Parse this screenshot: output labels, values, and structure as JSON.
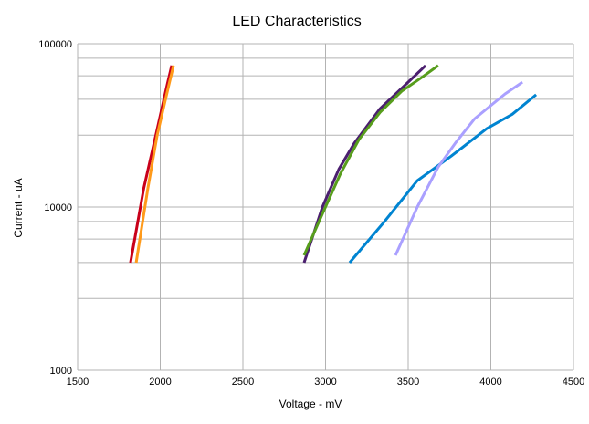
{
  "chart_data": {
    "type": "line",
    "title": "LED Characteristics",
    "xlabel": "Voltage - mV",
    "ylabel": "Current - uA",
    "xlim": [
      1500,
      4500
    ],
    "ylim": [
      1000,
      100000
    ],
    "yscale": "log",
    "grid": true,
    "legend": "none",
    "x_ticks": [
      1500,
      2000,
      2500,
      3000,
      3500,
      4000,
      4500
    ],
    "x_tick_labels": [
      "1500",
      "2000",
      "2500",
      "3000",
      "3500",
      "4000",
      "4500"
    ],
    "y_ticks": [
      1000,
      10000,
      100000
    ],
    "y_tick_labels": [
      "1000",
      "10000",
      "100000"
    ],
    "series": [
      {
        "name": "Red",
        "color": "#c9001a",
        "points": [
          [
            1820,
            4560
          ],
          [
            1900,
            13000
          ],
          [
            1973,
            27500
          ],
          [
            2040,
            55000
          ],
          [
            2069,
            73500
          ]
        ]
      },
      {
        "name": "Orange",
        "color": "#ff9a1a",
        "points": [
          [
            1854,
            4560
          ],
          [
            1925,
            13000
          ],
          [
            1981,
            27500
          ],
          [
            2050,
            55000
          ],
          [
            2080,
            73500
          ]
        ]
      },
      {
        "name": "Purple",
        "color": "#4b1f6f",
        "points": [
          [
            2870,
            4560
          ],
          [
            2981,
            10000
          ],
          [
            3080,
            17000
          ],
          [
            3174,
            24600
          ],
          [
            3330,
            40000
          ],
          [
            3489,
            56800
          ],
          [
            3605,
            73500
          ]
        ]
      },
      {
        "name": "Green",
        "color": "#579d1c",
        "points": [
          [
            2870,
            5060
          ],
          [
            2975,
            8800
          ],
          [
            3090,
            16000
          ],
          [
            3202,
            25900
          ],
          [
            3330,
            38000
          ],
          [
            3461,
            51200
          ],
          [
            3580,
            62000
          ],
          [
            3682,
            73500
          ]
        ]
      },
      {
        "name": "Blue",
        "color": "#0084d1",
        "points": [
          [
            3146,
            4560
          ],
          [
            3350,
            8000
          ],
          [
            3555,
            14500
          ],
          [
            3760,
            20500
          ],
          [
            3975,
            30200
          ],
          [
            4130,
            37000
          ],
          [
            4274,
            48700
          ]
        ]
      },
      {
        "name": "Lavender",
        "color": "#aaa0ff",
        "points": [
          [
            3423,
            5060
          ],
          [
            3555,
            10000
          ],
          [
            3682,
            17600
          ],
          [
            3790,
            25000
          ],
          [
            3903,
            34800
          ],
          [
            4086,
            49300
          ],
          [
            4191,
            58200
          ]
        ]
      }
    ]
  }
}
